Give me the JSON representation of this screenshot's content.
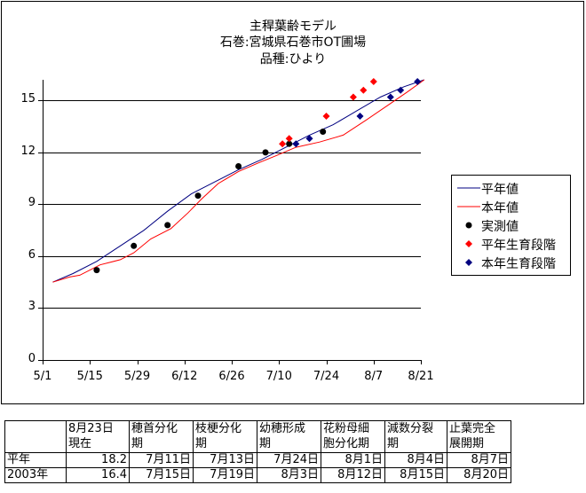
{
  "chart_data": {
    "type": "line",
    "title": [
      "主稈葉齢モデル",
      "石巻:宮城県石巻市OT圃場",
      "品種:ひより"
    ],
    "xlabel": "",
    "ylabel": "",
    "x_ticks": [
      "5/1",
      "5/15",
      "5/29",
      "6/12",
      "6/26",
      "7/10",
      "7/24",
      "8/7",
      "8/21"
    ],
    "y_ticks": [
      "0",
      "3",
      "6",
      "9",
      "12",
      "15"
    ],
    "xlim": [
      "5/1",
      "8/21"
    ],
    "ylim": [
      0,
      16.2
    ],
    "grid": "horizontal",
    "legend_position": "right",
    "series": [
      {
        "name": "平年値",
        "kind": "line",
        "color": "#000080",
        "points": [
          [
            "5/4",
            4.5
          ],
          [
            "5/10",
            5.0
          ],
          [
            "5/17",
            5.7
          ],
          [
            "5/24",
            6.6
          ],
          [
            "5/31",
            7.5
          ],
          [
            "6/7",
            8.6
          ],
          [
            "6/14",
            9.6
          ],
          [
            "6/21",
            10.3
          ],
          [
            "6/28",
            11.0
          ],
          [
            "7/5",
            11.6
          ],
          [
            "7/12",
            12.3
          ],
          [
            "7/19",
            13.0
          ],
          [
            "7/26",
            13.6
          ],
          [
            "8/2",
            14.4
          ],
          [
            "8/9",
            15.2
          ],
          [
            "8/16",
            15.8
          ],
          [
            "8/22",
            16.2
          ]
        ]
      },
      {
        "name": "本年値",
        "kind": "line",
        "color": "#ff0000",
        "points": [
          [
            "5/4",
            4.5
          ],
          [
            "5/9",
            4.8
          ],
          [
            "5/12",
            4.9
          ],
          [
            "5/18",
            5.5
          ],
          [
            "5/24",
            5.8
          ],
          [
            "5/28",
            6.2
          ],
          [
            "6/2",
            7.0
          ],
          [
            "6/8",
            7.6
          ],
          [
            "6/13",
            8.5
          ],
          [
            "6/17",
            9.3
          ],
          [
            "6/22",
            10.2
          ],
          [
            "6/28",
            10.9
          ],
          [
            "7/4",
            11.4
          ],
          [
            "7/9",
            11.8
          ],
          [
            "7/15",
            12.3
          ],
          [
            "7/22",
            12.6
          ],
          [
            "7/29",
            13.0
          ],
          [
            "8/5",
            13.9
          ],
          [
            "8/11",
            14.7
          ],
          [
            "8/17",
            15.5
          ],
          [
            "8/22",
            16.2
          ]
        ]
      },
      {
        "name": "実測値",
        "kind": "marker",
        "marker": "circle",
        "color": "#000000",
        "points": [
          [
            "5/17",
            5.2
          ],
          [
            "5/28",
            6.6
          ],
          [
            "6/7",
            7.8
          ],
          [
            "6/16",
            9.5
          ],
          [
            "6/28",
            11.2
          ],
          [
            "7/6",
            12.0
          ],
          [
            "7/13",
            12.5
          ],
          [
            "7/23",
            13.2
          ]
        ]
      },
      {
        "name": "平年生育段階",
        "kind": "marker",
        "marker": "diamond",
        "color": "#ff0000",
        "points": [
          [
            "7/11",
            12.5
          ],
          [
            "7/13",
            12.8
          ],
          [
            "7/24",
            14.1
          ],
          [
            "8/1",
            15.2
          ],
          [
            "8/4",
            15.6
          ],
          [
            "8/7",
            16.1
          ]
        ]
      },
      {
        "name": "本年生育段階",
        "kind": "marker",
        "marker": "diamond",
        "color": "#000080",
        "points": [
          [
            "7/15",
            12.5
          ],
          [
            "7/19",
            12.8
          ],
          [
            "8/3",
            14.1
          ],
          [
            "8/12",
            15.2
          ],
          [
            "8/15",
            15.6
          ],
          [
            "8/20",
            16.1
          ]
        ]
      }
    ]
  },
  "table": {
    "headers": [
      [
        "",
        ""
      ],
      [
        "8月23日",
        "現在"
      ],
      [
        "穂首分化",
        "期"
      ],
      [
        "枝梗分化",
        "期"
      ],
      [
        "幼穂形成",
        "期"
      ],
      [
        "花粉母細",
        "胞分化期"
      ],
      [
        "減数分裂",
        "期"
      ],
      [
        "止葉完全",
        "展開期"
      ]
    ],
    "rows": [
      [
        "平年",
        "18.2",
        "7月11日",
        "7月13日",
        "7月24日",
        "8月1日",
        "8月4日",
        "8月7日"
      ],
      [
        "2003年",
        "16.4",
        "7月15日",
        "7月19日",
        "8月3日",
        "8月12日",
        "8月15日",
        "8月20日"
      ]
    ]
  }
}
